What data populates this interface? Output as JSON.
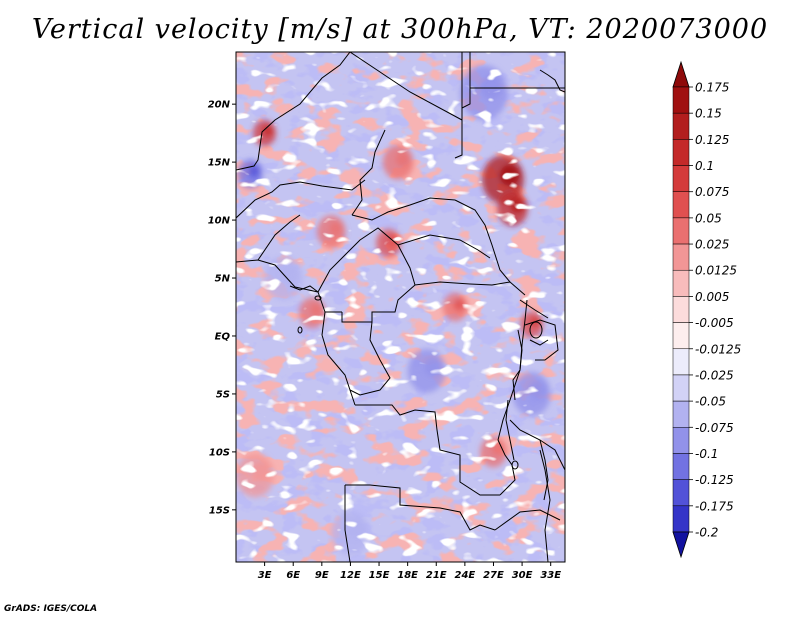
{
  "title": "Vertical velocity [m/s] at 300hPa, VT: 2020073000",
  "credit": "GrADS: IGES/COLA",
  "map": {
    "lat_range": [
      -19.5,
      24.5
    ],
    "lon_range": [
      0,
      34.5
    ],
    "lat_ticks": [
      {
        "value": 20,
        "label": "20N"
      },
      {
        "value": 15,
        "label": "15N"
      },
      {
        "value": 10,
        "label": "10N"
      },
      {
        "value": 5,
        "label": "5N"
      },
      {
        "value": 0,
        "label": "EQ"
      },
      {
        "value": -5,
        "label": "5S"
      },
      {
        "value": -10,
        "label": "10S"
      },
      {
        "value": -15,
        "label": "15S"
      }
    ],
    "lon_ticks": [
      {
        "value": 3,
        "label": "3E"
      },
      {
        "value": 6,
        "label": "6E"
      },
      {
        "value": 9,
        "label": "9E"
      },
      {
        "value": 12,
        "label": "12E"
      },
      {
        "value": 15,
        "label": "15E"
      },
      {
        "value": 18,
        "label": "18E"
      },
      {
        "value": 21,
        "label": "21E"
      },
      {
        "value": 24,
        "label": "24E"
      },
      {
        "value": 27,
        "label": "27E"
      },
      {
        "value": 30,
        "label": "30E"
      },
      {
        "value": 33,
        "label": "33E"
      }
    ],
    "hotspots": [
      {
        "lon": 28.0,
        "lat": 13.5,
        "value": 0.15,
        "radius": 2.2
      },
      {
        "lon": 29.0,
        "lat": 11.0,
        "value": 0.13,
        "radius": 1.6
      },
      {
        "lon": 3.0,
        "lat": 17.5,
        "value": 0.12,
        "radius": 1.2
      },
      {
        "lon": 16.0,
        "lat": 8.0,
        "value": 0.08,
        "radius": 1.3
      },
      {
        "lon": 31.0,
        "lat": 1.0,
        "value": 0.09,
        "radius": 1.2
      },
      {
        "lon": 23.0,
        "lat": 2.5,
        "value": 0.07,
        "radius": 1.3
      },
      {
        "lon": 10.0,
        "lat": 9.0,
        "value": 0.06,
        "radius": 1.5
      },
      {
        "lon": 8.0,
        "lat": 2.0,
        "value": 0.05,
        "radius": 1.4
      },
      {
        "lon": 27.0,
        "lat": -10.0,
        "value": 0.05,
        "radius": 1.4
      },
      {
        "lon": 2.0,
        "lat": -12.0,
        "value": 0.04,
        "radius": 2.0
      },
      {
        "lon": 17.0,
        "lat": 15.0,
        "value": 0.05,
        "radius": 1.6
      },
      {
        "lon": 20.0,
        "lat": -3.0,
        "value": -0.06,
        "radius": 2.0
      },
      {
        "lon": 26.0,
        "lat": 21.0,
        "value": -0.06,
        "radius": 2.5
      },
      {
        "lon": 5.0,
        "lat": 5.0,
        "value": -0.04,
        "radius": 2.0
      },
      {
        "lon": 31.0,
        "lat": -5.0,
        "value": -0.06,
        "radius": 2.0
      },
      {
        "lon": 1.5,
        "lat": 14.0,
        "value": -0.09,
        "radius": 1.3
      },
      {
        "lon": 12.0,
        "lat": -17.0,
        "value": -0.04,
        "radius": 2.0
      }
    ]
  },
  "colorbar": {
    "levels": [
      {
        "label": "0.175",
        "color": "#a01010"
      },
      {
        "label": "0.15",
        "color": "#b21e1e"
      },
      {
        "label": "0.125",
        "color": "#c42a2a"
      },
      {
        "label": "0.1",
        "color": "#d43b3b"
      },
      {
        "label": "0.075",
        "color": "#e05050"
      },
      {
        "label": "0.05",
        "color": "#ea7070"
      },
      {
        "label": "0.025",
        "color": "#f29696"
      },
      {
        "label": "0.0125",
        "color": "#f8bcbc"
      },
      {
        "label": "0.005",
        "color": "#fcdcdc"
      },
      {
        "label": "-0.005",
        "color": "#fdeeee"
      },
      {
        "label": "-0.0125",
        "color": "#ececfb"
      },
      {
        "label": "-0.025",
        "color": "#d2d2f6"
      },
      {
        "label": "-0.05",
        "color": "#b2b2f0"
      },
      {
        "label": "-0.075",
        "color": "#9292ea"
      },
      {
        "label": "-0.1",
        "color": "#7272e2"
      },
      {
        "label": "-0.125",
        "color": "#5252d8"
      },
      {
        "label": "-0.175",
        "color": "#3434c8"
      },
      {
        "label": "-0.2",
        "color": "#2020b2"
      }
    ],
    "top_cap_color": "#8e0a0a",
    "bottom_cap_color": "#1212a0"
  }
}
